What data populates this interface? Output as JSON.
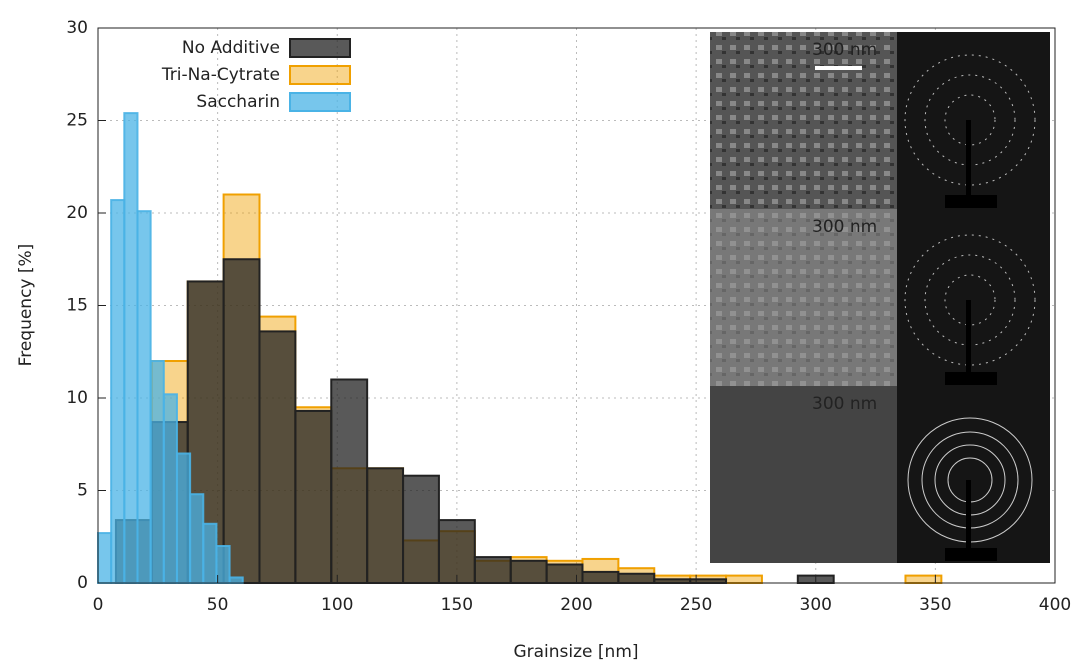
{
  "chart_data": {
    "type": "histogram",
    "xlabel": "Grainsize [nm]",
    "ylabel": "Frequency [%]",
    "xlim": [
      0,
      400
    ],
    "xticks": [
      0,
      50,
      100,
      150,
      200,
      250,
      300,
      350,
      400
    ],
    "ylim": [
      0,
      30
    ],
    "yticks": [
      0,
      5,
      10,
      15,
      20,
      25,
      30
    ],
    "grid": true,
    "legend": "upper left",
    "series": [
      {
        "name": "Tri-Na-Cytrate",
        "color": "#f0a000",
        "bins": [
          7.5,
          22.5,
          37.5,
          52.5,
          67.5,
          82.5,
          97.5,
          112.5,
          127.5,
          142.5,
          157.5,
          172.5,
          187.5,
          202.5,
          217.5,
          232.5,
          247.5,
          262.5,
          277.5,
          292.5,
          307.5,
          322.5,
          337.5,
          352.5
        ],
        "values": [
          3.4,
          12.0,
          16.3,
          21.0,
          14.4,
          9.5,
          6.2,
          6.2,
          2.3,
          2.8,
          1.2,
          1.4,
          1.2,
          1.3,
          0.8,
          0.4,
          0.4,
          0.4,
          0,
          0,
          0,
          0,
          0.4
        ]
      },
      {
        "name": "No Additive",
        "color": "#222222",
        "bins": [
          7.5,
          22.5,
          37.5,
          52.5,
          67.5,
          82.5,
          97.5,
          112.5,
          127.5,
          142.5,
          157.5,
          172.5,
          187.5,
          202.5,
          217.5,
          232.5,
          247.5,
          262.5,
          277.5,
          292.5,
          307.5,
          322.5,
          337.5,
          352.5
        ],
        "values": [
          3.4,
          8.7,
          16.3,
          17.5,
          13.6,
          9.3,
          11.0,
          6.2,
          5.8,
          3.4,
          1.4,
          1.2,
          1.0,
          0.6,
          0.5,
          0.2,
          0.2,
          0,
          0,
          0.4,
          0,
          0,
          0
        ]
      },
      {
        "name": "Saccharin",
        "color": "#4ab3e6",
        "bins": [
          0,
          5.5,
          11,
          16.5,
          22,
          27.5,
          33,
          38.5,
          44,
          49.5,
          55,
          60.5
        ],
        "values": [
          2.7,
          20.7,
          25.4,
          20.1,
          12.0,
          10.2,
          7.0,
          4.8,
          3.2,
          2.0,
          0.3
        ]
      }
    ],
    "annotations": [
      {
        "text": "300 nm",
        "color": "#ffffff"
      },
      {
        "text": "300 nm",
        "color": "#f0c060"
      },
      {
        "text": "300 nm",
        "color": "#5ab8e8"
      }
    ]
  }
}
